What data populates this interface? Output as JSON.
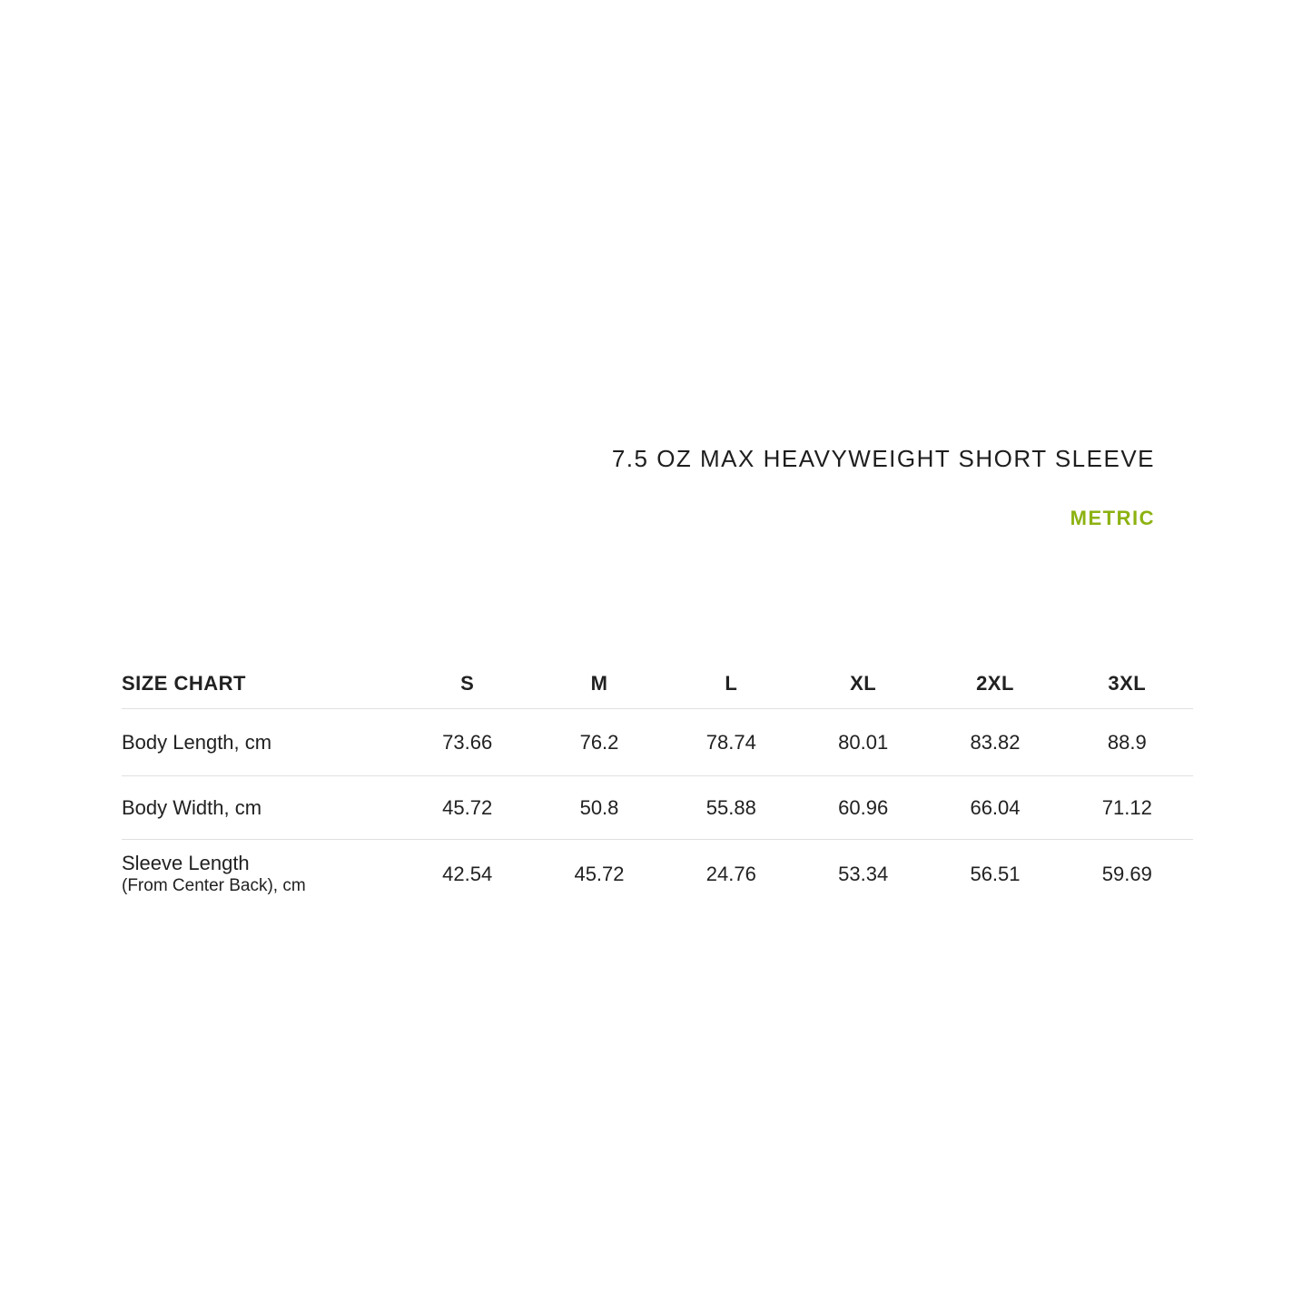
{
  "accent_color": "#8CB211",
  "header": {
    "title": "7.5 OZ MAX HEAVYWEIGHT SHORT SLEEVE",
    "unit_toggle": "METRIC"
  },
  "size_chart": {
    "label": "SIZE CHART",
    "columns": [
      "S",
      "M",
      "L",
      "XL",
      "2XL",
      "3XL"
    ],
    "rows": [
      {
        "label": "Body Length, cm",
        "sublabel": "",
        "values": [
          "73.66",
          "76.2",
          "78.74",
          "80.01",
          "83.82",
          "88.9"
        ]
      },
      {
        "label": "Body Width, cm",
        "sublabel": "",
        "values": [
          "45.72",
          "50.8",
          "55.88",
          "60.96",
          "66.04",
          "71.12"
        ]
      },
      {
        "label": "Sleeve Length",
        "sublabel": "(From Center Back), cm",
        "values": [
          "42.54",
          "45.72",
          "24.76",
          "53.34",
          "56.51",
          "59.69"
        ]
      }
    ]
  }
}
